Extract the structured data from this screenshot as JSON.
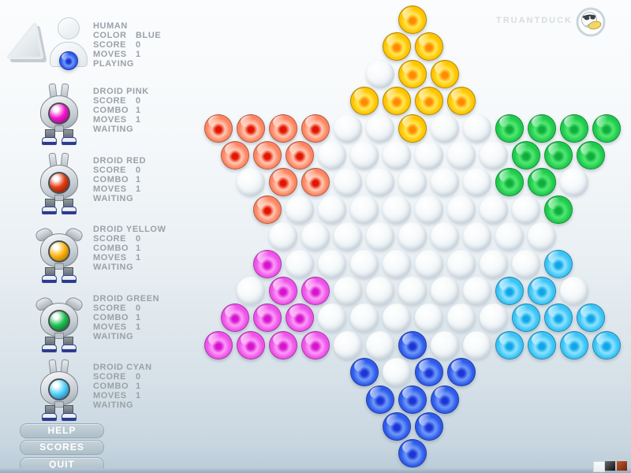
{
  "brand": {
    "name": "TRUANTDUCK",
    "logo": "duck-logo"
  },
  "human": {
    "name": "HUMAN",
    "rows": [
      [
        "COLOR",
        "BLUE"
      ],
      [
        "SCORE",
        "0"
      ],
      [
        "MOVES",
        "1"
      ]
    ],
    "status": "PLAYING",
    "marble": "blue"
  },
  "droids": [
    {
      "name": "DROID PINK",
      "antenna": "ears",
      "eye": "#f716ce",
      "eye_dark": "#7c0a68",
      "rows": [
        [
          "SCORE",
          "0"
        ],
        [
          "COMBO",
          "1"
        ],
        [
          "MOVES",
          "1"
        ]
      ],
      "status": "WAITING"
    },
    {
      "name": "DROID RED",
      "antenna": "ears",
      "eye": "#e23c14",
      "eye_dark": "#6e1404",
      "rows": [
        [
          "SCORE",
          "0"
        ],
        [
          "COMBO",
          "1"
        ],
        [
          "MOVES",
          "1"
        ]
      ],
      "status": "WAITING"
    },
    {
      "name": "DROID YELLOW",
      "antenna": "wings",
      "eye": "#ffb40a",
      "eye_dark": "#8a5e04",
      "rows": [
        [
          "SCORE",
          "0"
        ],
        [
          "COMBO",
          "1"
        ],
        [
          "MOVES",
          "1"
        ]
      ],
      "status": "WAITING"
    },
    {
      "name": "DROID GREEN",
      "antenna": "wings",
      "eye": "#1ec252",
      "eye_dark": "#07521e",
      "rows": [
        [
          "SCORE",
          "0"
        ],
        [
          "COMBO",
          "1"
        ],
        [
          "MOVES",
          "1"
        ]
      ],
      "status": "WAITING"
    },
    {
      "name": "DROID CYAN",
      "antenna": "ears",
      "eye": "#55d2f8",
      "eye_dark": "#0a5e9e",
      "rows": [
        [
          "SCORE",
          "0"
        ],
        [
          "COMBO",
          "1"
        ],
        [
          "MOVES",
          "1"
        ]
      ],
      "status": "WAITING"
    }
  ],
  "menu": [
    {
      "label": "HELP"
    },
    {
      "label": "SCORES"
    },
    {
      "label": "QUIT"
    }
  ],
  "board": {
    "rows": [
      "Y",
      "YY",
      ".YY",
      "YYYY",
      "RRRR..Y..GGGG",
      "RRR......GGG",
      ".RR.....GG.",
      "R........G",
      ".........",
      "M........C",
      ".MM.....CC.",
      "MMM......CCC",
      "MMMM..B..CCCC",
      "B.BB",
      "BBB",
      "BB",
      "B"
    ],
    "palette": {
      "Y": {
        "name": "yellow",
        "light": "#ffe851",
        "base": "#ffc400",
        "core": "#ff8a00",
        "ring": "#c84300"
      },
      "R": {
        "name": "red",
        "light": "#ffc9b2",
        "base": "#ff8562",
        "core": "#e41400",
        "ring": "#7e1200"
      },
      "G": {
        "name": "green",
        "light": "#52e873",
        "base": "#1ecb4c",
        "core": "#0fae3c",
        "ring": "#05541c"
      },
      "M": {
        "name": "magenta",
        "light": "#fc9cf7",
        "base": "#ef52ea",
        "core": "#d614cf",
        "ring": "#7e0680"
      },
      "C": {
        "name": "cyan",
        "light": "#8fe2ff",
        "base": "#38c4f8",
        "core": "#0fa6e8",
        "ring": "#0a55a4"
      },
      "B": {
        "name": "blue",
        "light": "#6f9af8",
        "base": "#2f5bec",
        "core": "#1b35d6",
        "ring": "#0a0f6a"
      },
      ".": {
        "name": "empty"
      }
    }
  },
  "corner_swatches": [
    {
      "name": "white"
    },
    {
      "name": "black"
    },
    {
      "name": "red"
    }
  ]
}
